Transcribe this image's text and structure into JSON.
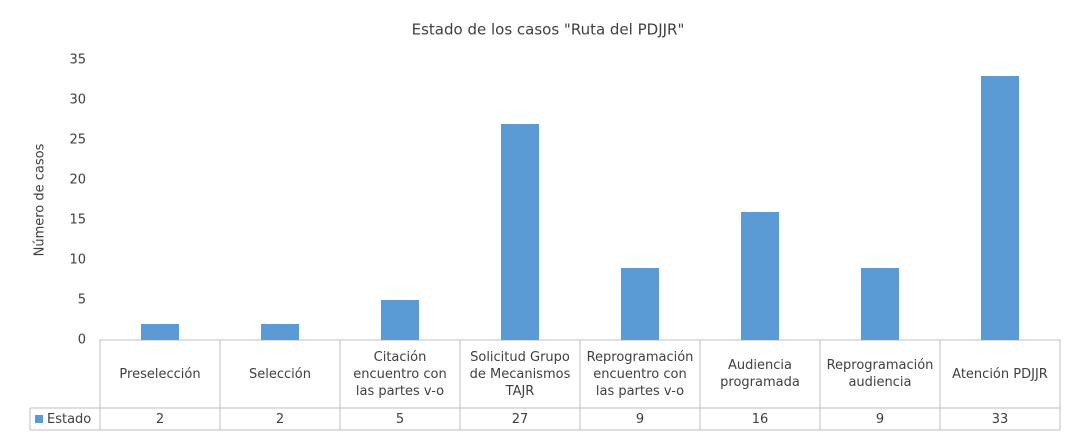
{
  "chart_data": {
    "type": "bar",
    "title": "Estado de los casos \"Ruta del PDJJR\"",
    "y_label": "Número de casos",
    "categories": [
      "Preselección",
      "Selección",
      "Citación encuentro con las partes v-o",
      "Solicitud Grupo de Mecanismos TAJR",
      "Reprogramación encuentro con las partes v-o",
      "Audiencia programada",
      "Reprogramación audiencia",
      "Atención PDJJR"
    ],
    "series": [
      {
        "name": "Estado",
        "color": "#5b9bd5",
        "values": [
          2,
          2,
          5,
          27,
          9,
          16,
          9,
          33
        ]
      }
    ],
    "ylim": [
      0,
      35
    ],
    "yticks": [
      0,
      5,
      10,
      15,
      20,
      25,
      30,
      35
    ],
    "grid": false,
    "data_table": true
  }
}
